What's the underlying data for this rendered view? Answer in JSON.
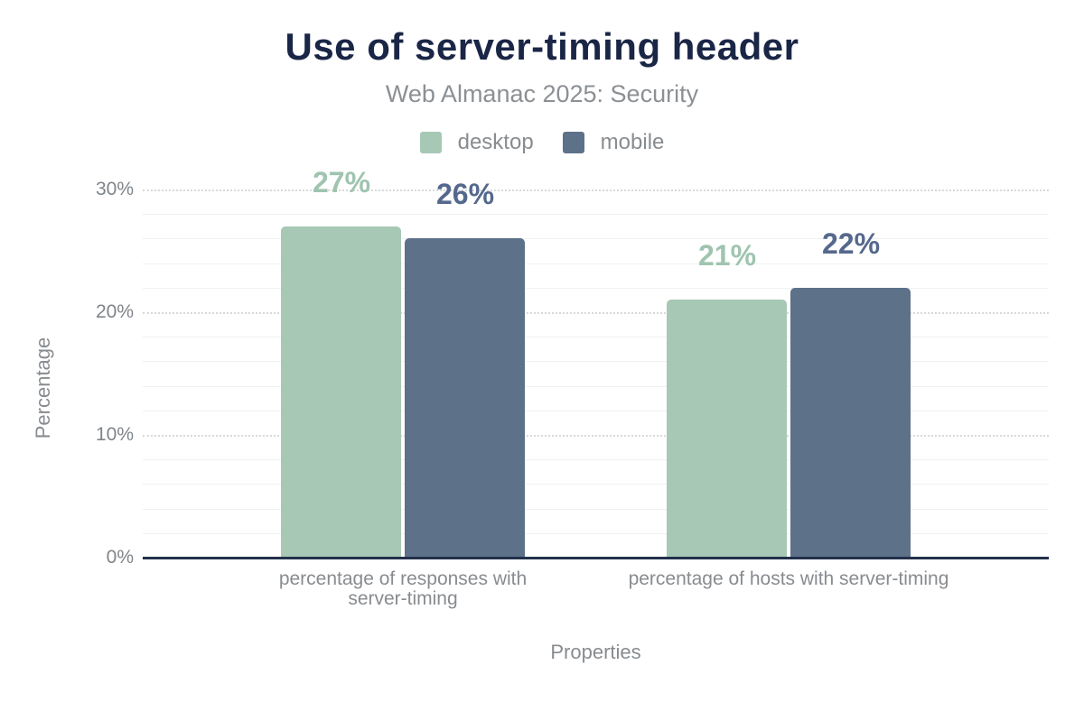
{
  "chart_data": {
    "type": "bar",
    "title": "Use of server-timing header",
    "subtitle": "Web Almanac 2025: Security",
    "xlabel": "Properties",
    "ylabel": "Percentage",
    "categories": [
      "percentage of responses with server-timing",
      "percentage of hosts with server-timing"
    ],
    "category_display_lines": [
      [
        "percentage of responses with",
        "server-timing"
      ],
      [
        "percentage of hosts with server-timing"
      ]
    ],
    "series": [
      {
        "name": "desktop",
        "values": [
          27,
          21
        ],
        "display_values": [
          "27%",
          "21%"
        ],
        "color": "#a6c8b5",
        "label_color": "#9fc4b0"
      },
      {
        "name": "mobile",
        "values": [
          26,
          22
        ],
        "display_values": [
          "26%",
          "22%"
        ],
        "color": "#5d7189",
        "label_color": "#55688d"
      }
    ],
    "y_ticks": [
      {
        "value": 0,
        "label": "0%"
      },
      {
        "value": 10,
        "label": "10%"
      },
      {
        "value": 20,
        "label": "20%"
      },
      {
        "value": 30,
        "label": "30%"
      }
    ],
    "ylim": [
      0,
      30
    ],
    "grid": {
      "minor_step": 2,
      "major_step": 10,
      "minor_color": "#f0f1f2",
      "major_color": "#d6d9db"
    },
    "legend_position": "top",
    "colors": {
      "title": "#1a2646",
      "subtitle": "#8c9094",
      "axis_line": "#22304a",
      "tick_text": "#7f8489",
      "label_text": "#888c90",
      "background": "#ffffff"
    }
  }
}
